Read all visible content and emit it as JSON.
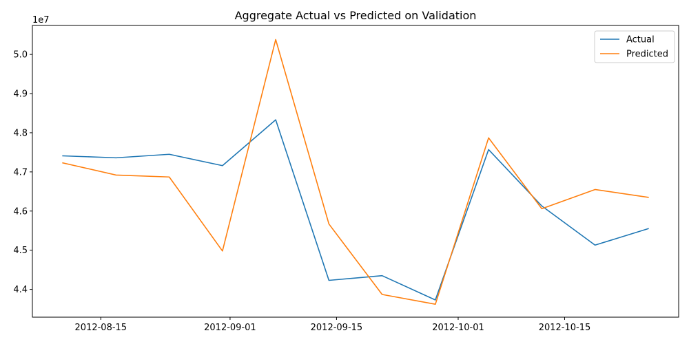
{
  "chart_data": {
    "type": "line",
    "title": "Aggregate Actual vs Predicted on Validation",
    "xlabel": "",
    "ylabel": "",
    "y_offset_label": "1e7",
    "x": [
      "2012-08-10",
      "2012-08-17",
      "2012-08-24",
      "2012-08-31",
      "2012-09-07",
      "2012-09-14",
      "2012-09-21",
      "2012-09-28",
      "2012-10-05",
      "2012-10-12",
      "2012-10-19",
      "2012-10-26"
    ],
    "x_ticks": [
      "2012-08-15",
      "2012-09-01",
      "2012-09-15",
      "2012-10-01",
      "2012-10-15"
    ],
    "y_ticks": [
      "4.4",
      "4.5",
      "4.6",
      "4.7",
      "4.8",
      "4.9",
      "5.0"
    ],
    "xlim": [
      "2012-08-06",
      "2012-10-30"
    ],
    "ylim": [
      43290000,
      50740000
    ],
    "legend_position": "top-right",
    "grid": false,
    "series": [
      {
        "name": "Actual",
        "color": "#1f77b4",
        "values": [
          47410000,
          47360000,
          47450000,
          47160000,
          48330000,
          44230000,
          44350000,
          43730000,
          47570000,
          46130000,
          45130000,
          45550000
        ]
      },
      {
        "name": "Predicted",
        "color": "#ff7f0e",
        "values": [
          47230000,
          46920000,
          46870000,
          44980000,
          50380000,
          45670000,
          43870000,
          43620000,
          47870000,
          46060000,
          46550000,
          46350000
        ]
      }
    ]
  }
}
